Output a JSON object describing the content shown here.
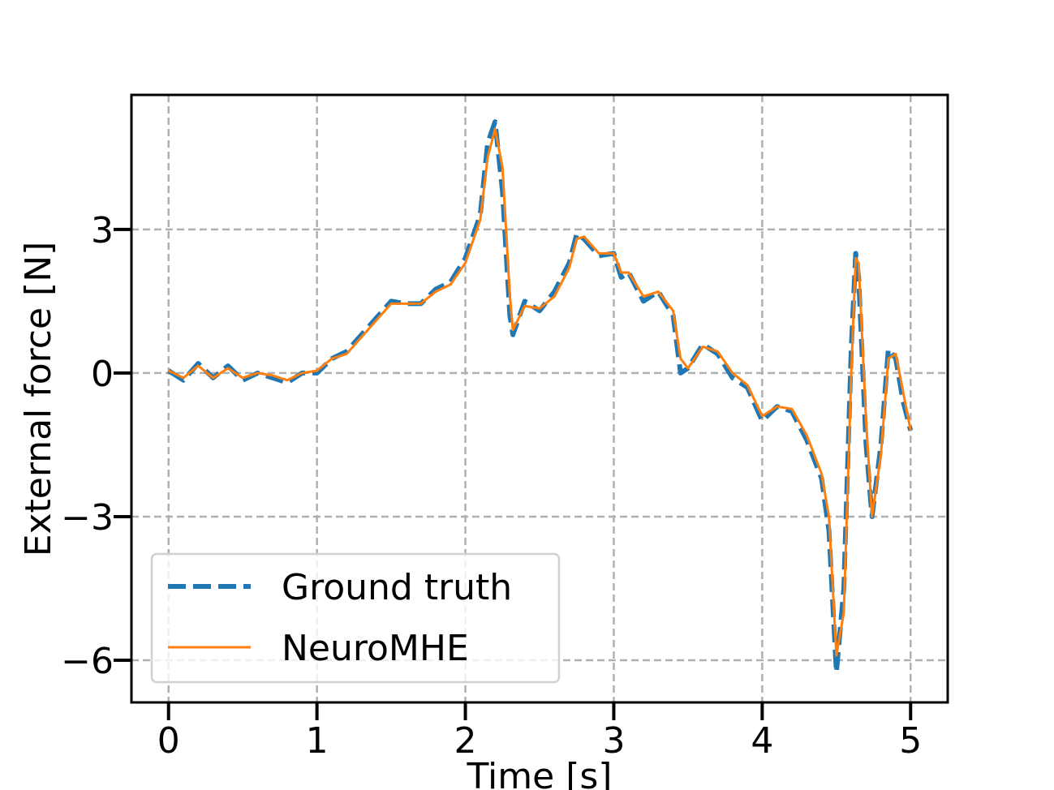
{
  "chart_data": {
    "type": "line",
    "xlabel": "Time [s]",
    "ylabel": "External force [N]",
    "x": [
      0,
      0.1,
      0.2,
      0.3,
      0.4,
      0.5,
      0.6,
      0.7,
      0.8,
      0.9,
      1.0,
      1.1,
      1.2,
      1.3,
      1.4,
      1.5,
      1.6,
      1.7,
      1.8,
      1.9,
      2.0,
      2.1,
      2.15,
      2.2,
      2.25,
      2.3,
      2.32,
      2.4,
      2.5,
      2.6,
      2.7,
      2.75,
      2.8,
      2.9,
      3.0,
      3.05,
      3.1,
      3.2,
      3.3,
      3.4,
      3.45,
      3.5,
      3.6,
      3.7,
      3.8,
      3.9,
      4.0,
      4.1,
      4.2,
      4.3,
      4.4,
      4.45,
      4.5,
      4.55,
      4.6,
      4.63,
      4.65,
      4.7,
      4.74,
      4.8,
      4.85,
      4.9,
      4.95,
      5.0
    ],
    "series": [
      {
        "name": "Ground truth",
        "color": "#1f77b4",
        "style": "dashed",
        "values": [
          0.05,
          -0.15,
          0.2,
          -0.1,
          0.15,
          -0.15,
          0,
          -0.1,
          -0.2,
          0,
          0,
          0.3,
          0.45,
          0.8,
          1.15,
          1.5,
          1.45,
          1.45,
          1.75,
          1.9,
          2.4,
          3.3,
          4.8,
          5.25,
          3.8,
          1.2,
          0.8,
          1.5,
          1.3,
          1.7,
          2.3,
          2.9,
          2.8,
          2.45,
          2.5,
          2.0,
          2.1,
          1.5,
          1.7,
          1.2,
          0,
          0.1,
          0.6,
          0.4,
          -0.1,
          -0.3,
          -1.0,
          -0.7,
          -0.8,
          -1.4,
          -2.2,
          -3.3,
          -6.25,
          -4.5,
          0.5,
          2.5,
          2.0,
          -1.5,
          -3.0,
          -1.5,
          0.5,
          0.3,
          -0.6,
          -1.2
        ]
      },
      {
        "name": "NeuroMHE",
        "color": "#ff7f0e",
        "style": "solid",
        "values": [
          0.05,
          -0.1,
          0.15,
          -0.1,
          0.1,
          -0.1,
          0,
          -0.05,
          -0.15,
          0,
          0.05,
          0.3,
          0.4,
          0.75,
          1.1,
          1.45,
          1.45,
          1.45,
          1.7,
          1.85,
          2.3,
          3.2,
          4.5,
          5.1,
          4.3,
          1.6,
          0.9,
          1.4,
          1.35,
          1.6,
          2.2,
          2.8,
          2.85,
          2.5,
          2.5,
          2.1,
          2.1,
          1.6,
          1.7,
          1.3,
          0.3,
          0.1,
          0.55,
          0.45,
          0,
          -0.25,
          -0.9,
          -0.7,
          -0.75,
          -1.3,
          -2.1,
          -3.0,
          -5.9,
          -5.0,
          0,
          2.4,
          2.3,
          -1.0,
          -3.0,
          -1.7,
          0.3,
          0.4,
          -0.4,
          -1.2
        ]
      }
    ],
    "xlim": [
      -0.25,
      5.25
    ],
    "ylim": [
      -6.88,
      5.81
    ],
    "xticks": [
      0,
      1,
      2,
      3,
      4,
      5
    ],
    "yticks": [
      {
        "value": -6,
        "label": "−6"
      },
      {
        "value": -3,
        "label": "−3"
      },
      0,
      3
    ],
    "grid": true,
    "legend": "lower left"
  }
}
